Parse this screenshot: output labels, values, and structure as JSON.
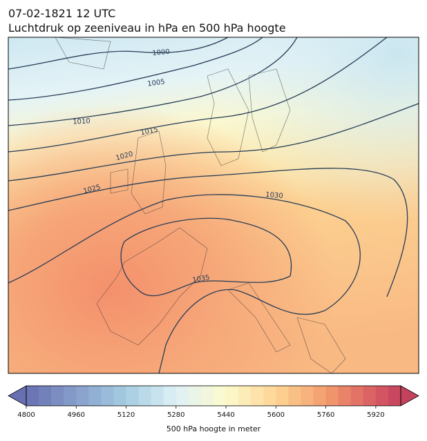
{
  "header": {
    "line1": "07-02-1821 12 UTC",
    "line2": "Luchtdruk op zeeniveau in hPa en 500 hPa hoogte"
  },
  "isobar_labels": [
    1000,
    1005,
    1010,
    1015,
    1020,
    1025,
    1030,
    1035
  ],
  "colorbar": {
    "label": "500 hPa hoogte in meter",
    "range": [
      4800,
      6000
    ],
    "ticks": [
      4800,
      4960,
      5120,
      5280,
      5440,
      5600,
      5760,
      5920
    ]
  }
}
